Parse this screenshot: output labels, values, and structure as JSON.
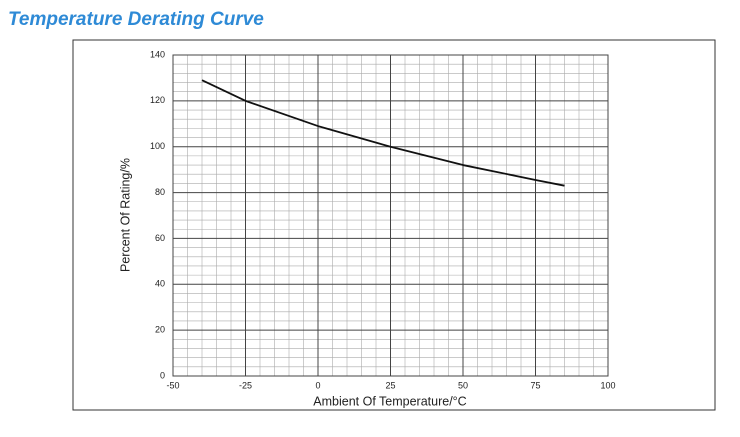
{
  "chart_data": {
    "type": "line",
    "title": "Temperature Derating Curve",
    "x_label": "Ambient Of Temperature/°C",
    "y_label": "Percent Of Rating/%",
    "x": [
      -40,
      -25,
      0,
      25,
      50,
      75,
      85
    ],
    "values": [
      129,
      120,
      109,
      100,
      92,
      85.5,
      83
    ],
    "color": "#111111",
    "xlim": [
      -50,
      100
    ],
    "xticks": [
      -50,
      -25,
      0,
      25,
      50,
      75,
      100
    ],
    "ylim": [
      0,
      140
    ],
    "yticks": [
      0,
      20,
      40,
      60,
      80,
      100,
      120,
      140
    ],
    "grid": true,
    "minor_grid": true
  }
}
